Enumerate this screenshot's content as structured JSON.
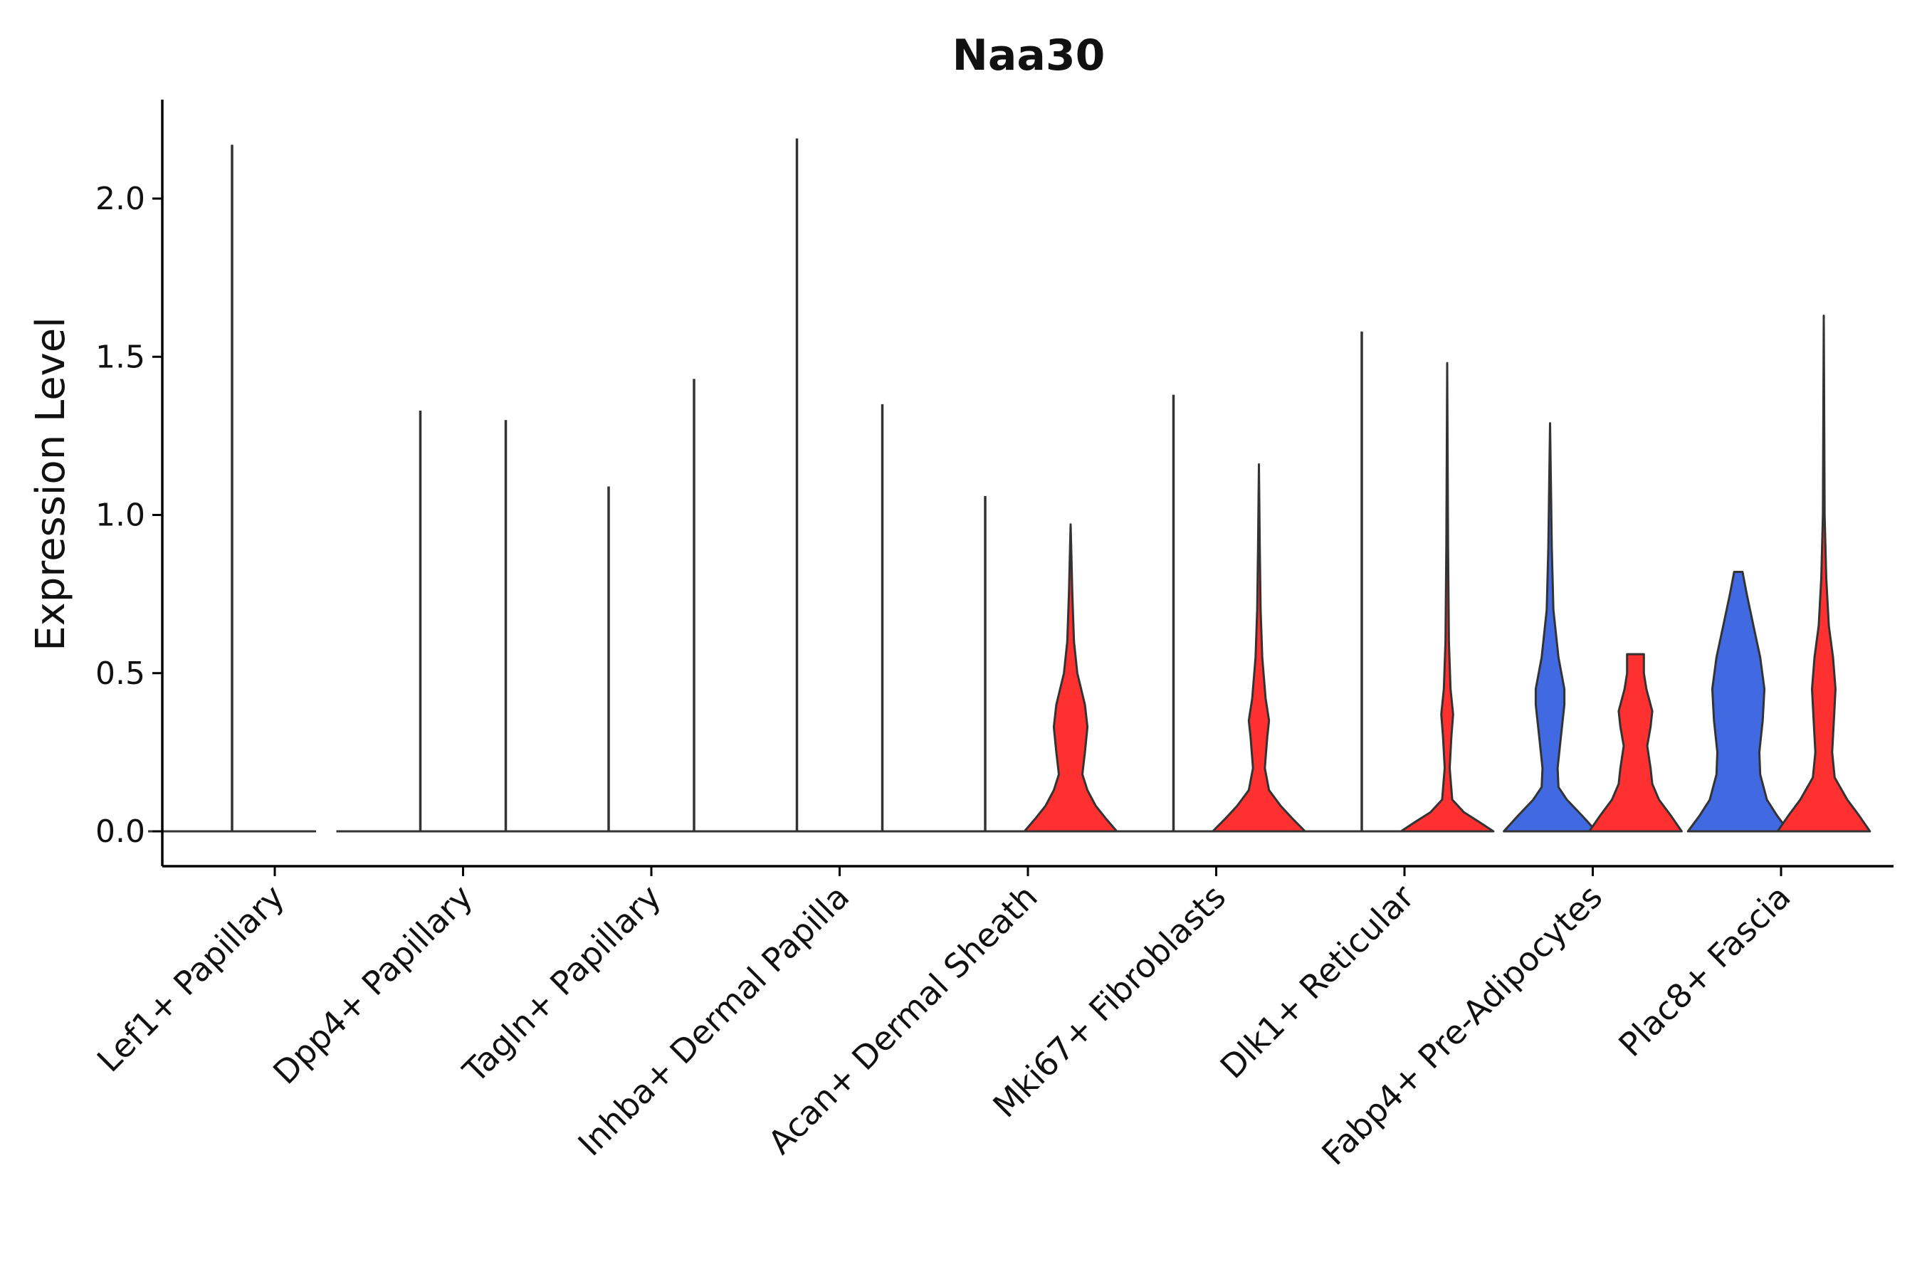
{
  "chart_data": {
    "type": "violin",
    "title": "Naa30",
    "xlabel": "",
    "ylabel": "Expression Level",
    "ylim": [
      -0.11,
      2.3
    ],
    "yticks": [
      0.0,
      0.5,
      1.0,
      1.5,
      2.0
    ],
    "ytick_labels": [
      "0.0",
      "0.5",
      "1.0",
      "1.5",
      "2.0"
    ],
    "legend": "none",
    "grid": false,
    "categories": [
      "Lef1+ Papillary",
      "Dpp4+ Papillary",
      "Tagln+ Papillary",
      "Inhba+ Dermal Papilla",
      "Acan+ Dermal Sheath",
      "Mki67+ Fibroblasts",
      "Dlk1+ Reticular",
      "Fabp4+ Pre-Adipocytes",
      "Plac8+ Fascia"
    ],
    "colors": {
      "group_a": "#4169E1",
      "group_b": "#FF3030",
      "outline": "#333333"
    },
    "series": [
      {
        "name": "group_a",
        "values_max": [
          2.17,
          1.33,
          1.09,
          2.19,
          1.06,
          1.38,
          1.58,
          1.29,
          0.82
        ],
        "filled": [
          false,
          false,
          false,
          false,
          false,
          false,
          false,
          true,
          true
        ],
        "density": [
          null,
          null,
          null,
          null,
          null,
          null,
          null,
          [
            [
              0.0,
              0.55
            ],
            [
              0.05,
              0.38
            ],
            [
              0.1,
              0.2
            ],
            [
              0.14,
              0.1
            ],
            [
              0.2,
              0.09
            ],
            [
              0.3,
              0.13
            ],
            [
              0.4,
              0.17
            ],
            [
              0.45,
              0.17
            ],
            [
              0.55,
              0.1
            ],
            [
              0.7,
              0.04
            ],
            [
              0.9,
              0.02
            ],
            [
              1.1,
              0.01
            ],
            [
              1.29,
              0.0
            ]
          ],
          [
            [
              0.0,
              0.6
            ],
            [
              0.05,
              0.46
            ],
            [
              0.1,
              0.34
            ],
            [
              0.18,
              0.26
            ],
            [
              0.25,
              0.25
            ],
            [
              0.35,
              0.29
            ],
            [
              0.45,
              0.31
            ],
            [
              0.55,
              0.26
            ],
            [
              0.65,
              0.18
            ],
            [
              0.75,
              0.1
            ],
            [
              0.82,
              0.05
            ]
          ]
        ]
      },
      {
        "name": "group_b",
        "values_max": [
          null,
          1.3,
          1.43,
          1.35,
          0.97,
          1.16,
          1.48,
          0.56,
          1.63
        ],
        "filled": [
          false,
          false,
          false,
          false,
          true,
          true,
          true,
          true,
          true
        ],
        "density": [
          null,
          null,
          null,
          null,
          [
            [
              0.0,
              0.55
            ],
            [
              0.04,
              0.42
            ],
            [
              0.08,
              0.3
            ],
            [
              0.13,
              0.2
            ],
            [
              0.18,
              0.14
            ],
            [
              0.25,
              0.17
            ],
            [
              0.33,
              0.2
            ],
            [
              0.4,
              0.17
            ],
            [
              0.5,
              0.08
            ],
            [
              0.6,
              0.04
            ],
            [
              0.75,
              0.02
            ],
            [
              0.97,
              0.0
            ]
          ],
          [
            [
              0.0,
              0.55
            ],
            [
              0.04,
              0.4
            ],
            [
              0.08,
              0.26
            ],
            [
              0.13,
              0.12
            ],
            [
              0.2,
              0.07
            ],
            [
              0.3,
              0.1
            ],
            [
              0.35,
              0.12
            ],
            [
              0.42,
              0.08
            ],
            [
              0.55,
              0.04
            ],
            [
              0.7,
              0.02
            ],
            [
              0.9,
              0.01
            ],
            [
              1.16,
              0.0
            ]
          ],
          [
            [
              0.0,
              0.55
            ],
            [
              0.03,
              0.38
            ],
            [
              0.06,
              0.2
            ],
            [
              0.1,
              0.06
            ],
            [
              0.2,
              0.03
            ],
            [
              0.3,
              0.05
            ],
            [
              0.37,
              0.07
            ],
            [
              0.45,
              0.04
            ],
            [
              0.6,
              0.02
            ],
            [
              0.9,
              0.01
            ],
            [
              1.48,
              0.0
            ]
          ],
          [
            [
              0.0,
              0.55
            ],
            [
              0.05,
              0.42
            ],
            [
              0.1,
              0.28
            ],
            [
              0.15,
              0.2
            ],
            [
              0.2,
              0.18
            ],
            [
              0.27,
              0.14
            ],
            [
              0.33,
              0.18
            ],
            [
              0.38,
              0.2
            ],
            [
              0.45,
              0.13
            ],
            [
              0.5,
              0.1
            ],
            [
              0.56,
              0.1
            ]
          ],
          [
            [
              0.0,
              0.55
            ],
            [
              0.05,
              0.42
            ],
            [
              0.1,
              0.28
            ],
            [
              0.17,
              0.13
            ],
            [
              0.25,
              0.1
            ],
            [
              0.35,
              0.12
            ],
            [
              0.45,
              0.14
            ],
            [
              0.55,
              0.11
            ],
            [
              0.65,
              0.06
            ],
            [
              0.8,
              0.03
            ],
            [
              1.0,
              0.01
            ],
            [
              1.63,
              0.0
            ]
          ]
        ]
      }
    ]
  }
}
